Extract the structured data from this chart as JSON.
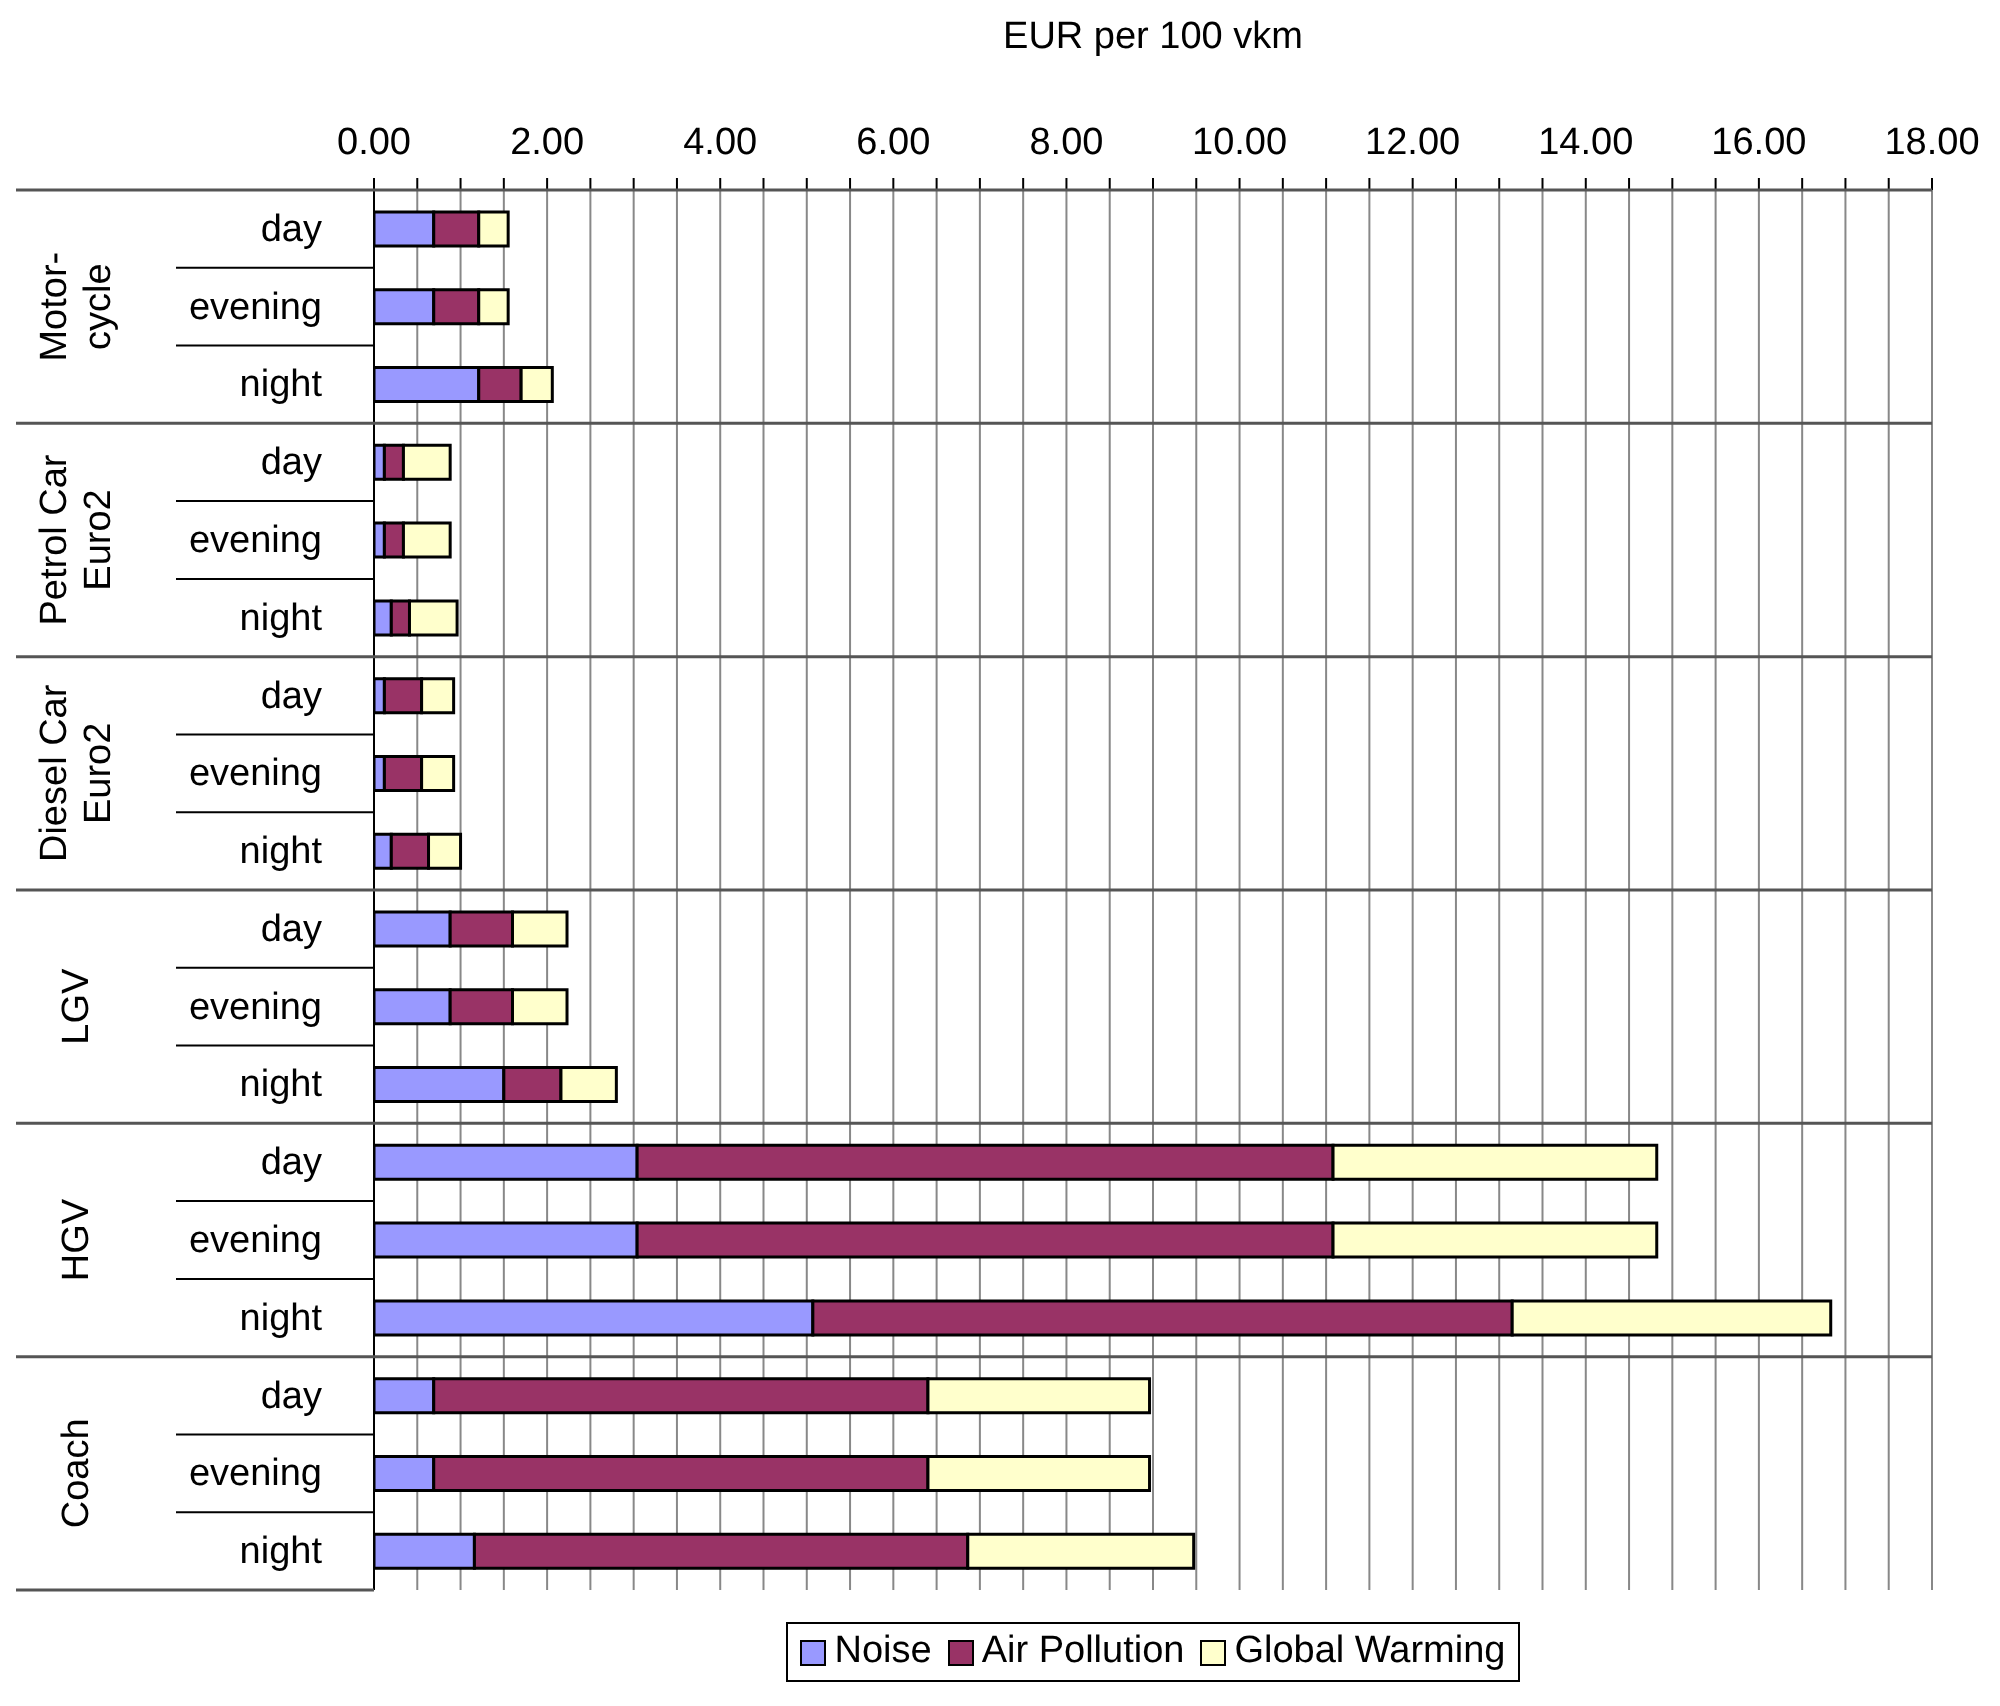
{
  "chart_data": {
    "type": "bar",
    "orientation": "horizontal",
    "stacked": true,
    "xlabel": "EUR per 100 vkm",
    "categories": [
      "day",
      "evening",
      "night",
      "day",
      "evening",
      "night",
      "day",
      "evening",
      "night",
      "day",
      "evening",
      "night",
      "day",
      "evening",
      "night",
      "day",
      "evening",
      "night"
    ],
    "annotations": [
      "Motor-\ncycle",
      "Petrol Car\nEuro2",
      "Diesel Car\nEuro2",
      "LGV",
      "HGV",
      "Coach"
    ],
    "series": [
      {
        "name": "Noise",
        "color": "#9999ff",
        "values": [
          0.69,
          0.69,
          1.21,
          0.12,
          0.12,
          0.2,
          0.12,
          0.12,
          0.2,
          0.88,
          0.88,
          1.5,
          3.04,
          3.04,
          5.07,
          0.69,
          0.69,
          1.16
        ]
      },
      {
        "name": "Air Pollution",
        "color": "#993366",
        "values": [
          0.52,
          0.52,
          0.49,
          0.22,
          0.22,
          0.21,
          0.43,
          0.43,
          0.43,
          0.72,
          0.72,
          0.66,
          8.04,
          8.04,
          8.08,
          5.71,
          5.71,
          5.7
        ]
      },
      {
        "name": "Global Warming",
        "color": "#ffffcc",
        "values": [
          0.34,
          0.34,
          0.36,
          0.54,
          0.54,
          0.55,
          0.37,
          0.37,
          0.37,
          0.63,
          0.63,
          0.64,
          3.74,
          3.74,
          3.68,
          2.56,
          2.56,
          2.61
        ]
      }
    ],
    "xlim": [
      0,
      18
    ],
    "xticks": [
      {
        "value": 0,
        "label": "0.00"
      },
      {
        "value": 0.5,
        "label": null
      },
      {
        "value": 1,
        "label": null
      },
      {
        "value": 1.5,
        "label": null
      },
      {
        "value": 2,
        "label": "2.00"
      },
      {
        "value": 2.5,
        "label": null
      },
      {
        "value": 3,
        "label": null
      },
      {
        "value": 3.5,
        "label": null
      },
      {
        "value": 4,
        "label": "4.00"
      },
      {
        "value": 4.5,
        "label": null
      },
      {
        "value": 5,
        "label": null
      },
      {
        "value": 5.5,
        "label": null
      },
      {
        "value": 6,
        "label": "6.00"
      },
      {
        "value": 6.5,
        "label": null
      },
      {
        "value": 7,
        "label": null
      },
      {
        "value": 7.5,
        "label": null
      },
      {
        "value": 8,
        "label": "8.00"
      },
      {
        "value": 8.5,
        "label": null
      },
      {
        "value": 9,
        "label": null
      },
      {
        "value": 9.5,
        "label": null
      },
      {
        "value": 10,
        "label": "10.00"
      },
      {
        "value": 10.5,
        "label": null
      },
      {
        "value": 11,
        "label": null
      },
      {
        "value": 11.5,
        "label": null
      },
      {
        "value": 12,
        "label": "12.00"
      },
      {
        "value": 12.5,
        "label": null
      },
      {
        "value": 13,
        "label": null
      },
      {
        "value": 13.5,
        "label": null
      },
      {
        "value": 14,
        "label": "14.00"
      },
      {
        "value": 14.5,
        "label": null
      },
      {
        "value": 15,
        "label": null
      },
      {
        "value": 15.5,
        "label": null
      },
      {
        "value": 16,
        "label": "16.00"
      },
      {
        "value": 16.5,
        "label": null
      },
      {
        "value": 17,
        "label": null
      },
      {
        "value": 17.5,
        "label": null
      },
      {
        "value": 18,
        "label": "18.00"
      }
    ],
    "grid": "x",
    "legend": "bottom"
  }
}
